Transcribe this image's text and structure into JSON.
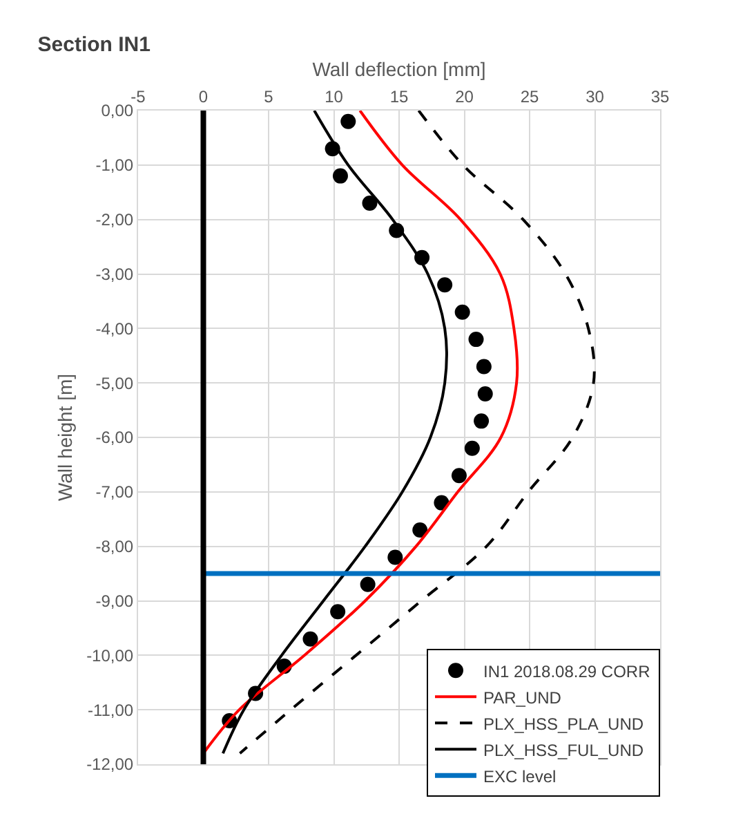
{
  "chart_data": {
    "type": "line",
    "title": "Section IN1",
    "xlabel": "Wall deflection [mm]",
    "ylabel": "Wall height [m]",
    "xlim": [
      -5,
      35
    ],
    "xticks": [
      -5,
      0,
      5,
      10,
      15,
      20,
      25,
      30,
      35
    ],
    "ylim": [
      -12,
      0
    ],
    "yticks": [
      {
        "value": 0,
        "label": "0,00"
      },
      {
        "value": -1,
        "label": "-1,00"
      },
      {
        "value": -2,
        "label": "-2,00"
      },
      {
        "value": -3,
        "label": "-3,00"
      },
      {
        "value": -4,
        "label": "-4,00"
      },
      {
        "value": -5,
        "label": "-5,00"
      },
      {
        "value": -6,
        "label": "-6,00"
      },
      {
        "value": -7,
        "label": "-7,00"
      },
      {
        "value": -8,
        "label": "-8,00"
      },
      {
        "value": -9,
        "label": "-9,00"
      },
      {
        "value": -10,
        "label": "-10,00"
      },
      {
        "value": -11,
        "label": "-11,00"
      },
      {
        "value": -12,
        "label": "-12,00"
      }
    ],
    "grid": true,
    "legend": "bottom right",
    "ref_lines": [
      {
        "axis": "x",
        "value": 0,
        "label": null,
        "color": "#000000"
      }
    ],
    "series": [
      {
        "name": "IN1 2018.08.29 CORR",
        "type": "scatter",
        "marker": "circle",
        "color": "#000000",
        "x": [
          11.1,
          9.9,
          10.5,
          12.75,
          14.8,
          16.75,
          18.5,
          19.85,
          20.9,
          21.5,
          21.6,
          21.3,
          20.6,
          19.6,
          18.25,
          16.6,
          14.7,
          12.6,
          10.3,
          8.2,
          6.2,
          4.0,
          2.0
        ],
        "values": [
          -0.2,
          -0.7,
          -1.2,
          -1.7,
          -2.2,
          -2.7,
          -3.2,
          -3.7,
          -4.2,
          -4.7,
          -5.2,
          -5.7,
          -6.2,
          -6.7,
          -7.2,
          -7.7,
          -8.2,
          -8.7,
          -9.2,
          -9.7,
          -10.2,
          -10.7,
          -11.2
        ]
      },
      {
        "name": "PAR_UND",
        "line_style": "solid",
        "color": "#ff0000",
        "x": [
          12.0,
          15.25,
          19.7,
          22.75,
          23.8,
          24.0,
          22.8,
          19.5,
          16.3,
          12.4,
          7.75,
          2.75,
          0.0
        ],
        "values": [
          0,
          -1,
          -2,
          -3,
          -4,
          -5,
          -6,
          -7,
          -8,
          -9,
          -10,
          -11,
          -11.8
        ]
      },
      {
        "name": "PLX_HSS_PLA_UND",
        "line_style": "dashed",
        "color": "#000000",
        "x": [
          16.5,
          19.9,
          24.5,
          27.75,
          29.5,
          29.9,
          28.3,
          24.9,
          21.7,
          16.7,
          11.7,
          6.7,
          2.8
        ],
        "values": [
          0,
          -1,
          -2,
          -3,
          -4,
          -5,
          -6,
          -7,
          -8,
          -9,
          -10,
          -11,
          -11.8
        ]
      },
      {
        "name": "PLX_HSS_FUL_UND",
        "line_style": "solid",
        "color": "#000000",
        "x": [
          8.5,
          11.1,
          14.5,
          17.2,
          18.5,
          18.5,
          17.4,
          15.25,
          12.4,
          9.2,
          6.0,
          3.1,
          1.5
        ],
        "values": [
          0,
          -1,
          -2,
          -3,
          -4,
          -5,
          -6,
          -7,
          -8,
          -9,
          -10,
          -11,
          -11.8
        ]
      },
      {
        "name": "EXC level",
        "line_style": "solid",
        "color": "#0070c0",
        "x": [
          0,
          35
        ],
        "values": [
          -8.5,
          -8.5
        ]
      }
    ]
  }
}
